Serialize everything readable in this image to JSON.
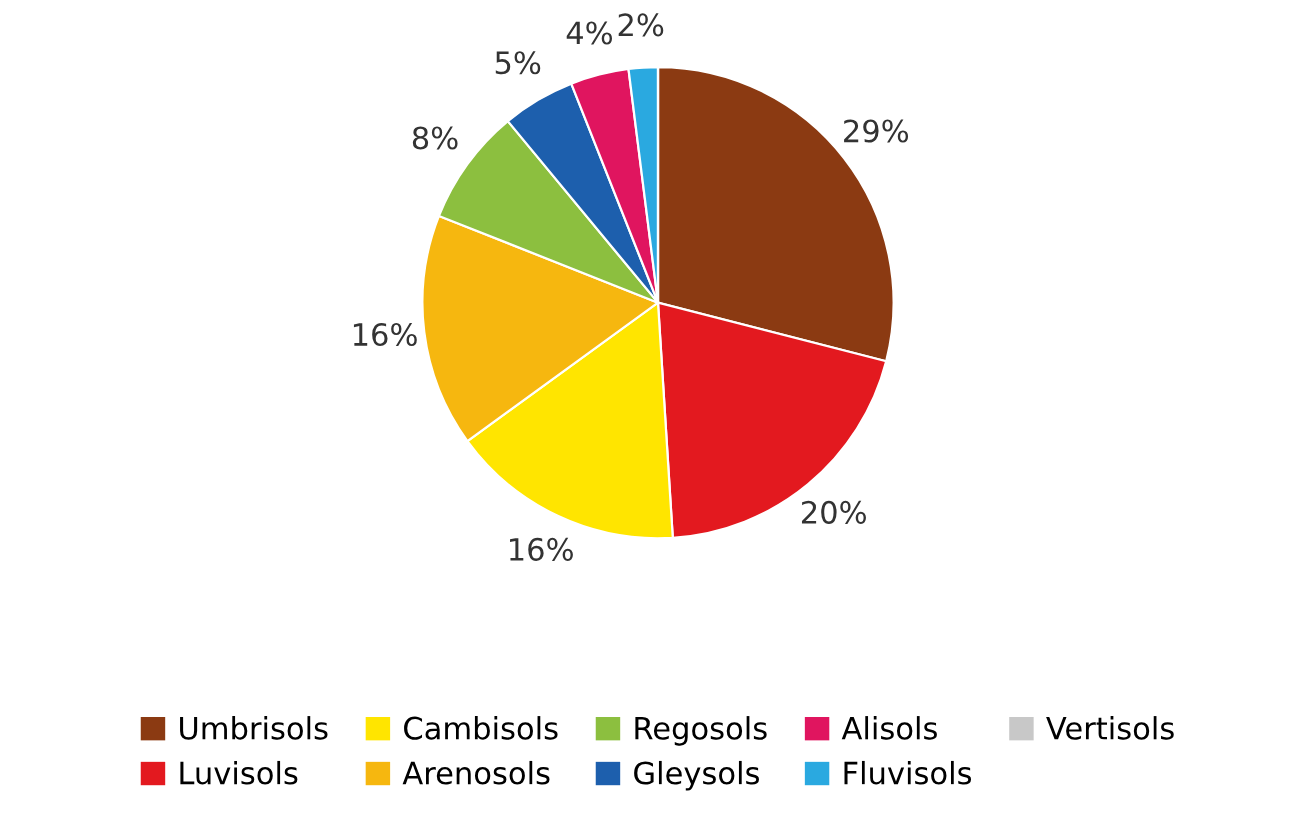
{
  "chart_data": {
    "type": "pie",
    "categories": [
      "Umbrisols",
      "Luvisols",
      "Cambisols",
      "Arenosols",
      "Regosols",
      "Gleysols",
      "Alisols",
      "Fluvisols",
      "Vertisols"
    ],
    "values": [
      29,
      20,
      16,
      16,
      8,
      5,
      4,
      2,
      0
    ],
    "colors": [
      "#8b3a12",
      "#e3191f",
      "#ffe500",
      "#f6b70f",
      "#8cbf3f",
      "#1d5fad",
      "#e0155f",
      "#2aa9e0",
      "#c8c8c8"
    ],
    "value_labels": [
      "29%",
      "20%",
      "16%",
      "16%",
      "8%",
      "5%",
      "4%",
      "2%",
      null
    ],
    "legend": "bottom"
  }
}
